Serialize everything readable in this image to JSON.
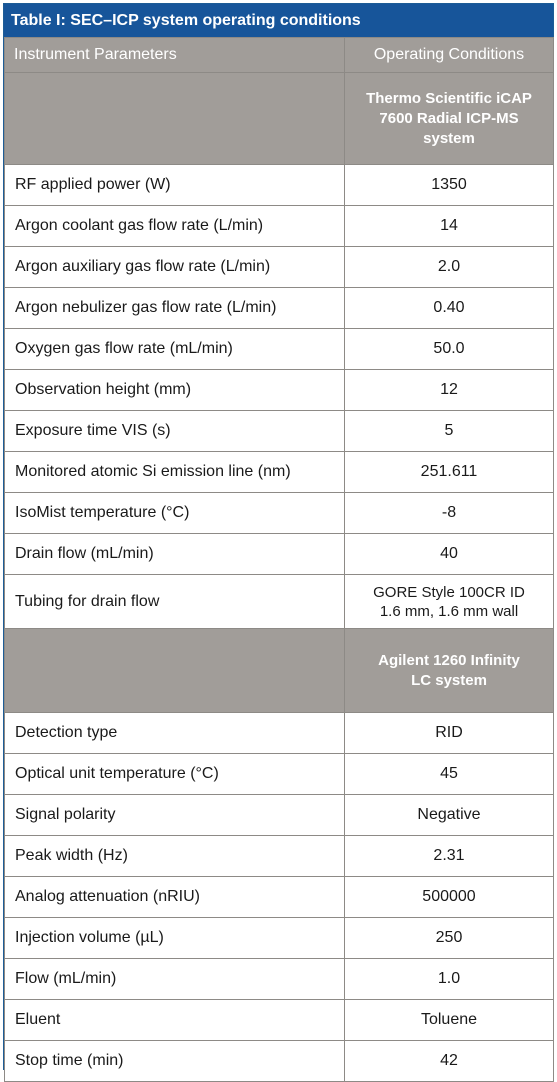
{
  "title": "Table I: SEC–ICP system operating conditions",
  "header": {
    "param_label": "Instrument Parameters",
    "cond_label": "Operating Conditions"
  },
  "sections": [
    {
      "system_line1": "Thermo Scientific iCAP",
      "system_line2": "7600 Radial ICP-MS",
      "system_line3": "system",
      "rows": [
        {
          "param": "RF applied power (W)",
          "value": "1350"
        },
        {
          "param": "Argon coolant gas flow rate (L/min)",
          "value": "14"
        },
        {
          "param": "Argon auxiliary gas flow rate (L/min)",
          "value": "2.0"
        },
        {
          "param": "Argon nebulizer gas flow rate (L/min)",
          "value": "0.40"
        },
        {
          "param": "Oxygen gas flow rate (mL/min)",
          "value": "50.0"
        },
        {
          "param": "Observation height (mm)",
          "value": "12"
        },
        {
          "param": "Exposure time VIS (s)",
          "value": "5"
        },
        {
          "param": "Monitored atomic Si emission line (nm)",
          "value": "251.611"
        },
        {
          "param": "IsoMist temperature (°C)",
          "value": "-8"
        },
        {
          "param": "Drain flow (mL/min)",
          "value": "40"
        },
        {
          "param": "Tubing for drain flow",
          "value_line1": "GORE Style 100CR ID",
          "value_line2": "1.6 mm, 1.6 mm wall"
        }
      ]
    },
    {
      "system_line1": "Agilent 1260 Infinity",
      "system_line2": "LC system",
      "rows": [
        {
          "param": "Detection type",
          "value": "RID"
        },
        {
          "param": "Optical unit temperature (°C)",
          "value": "45"
        },
        {
          "param": "Signal polarity",
          "value": "Negative"
        },
        {
          "param": "Peak width (Hz)",
          "value": "2.31"
        },
        {
          "param": "Analog attenuation (nRIU)",
          "value": "500000"
        },
        {
          "param": "Injection volume (µL)",
          "value": "250"
        },
        {
          "param": "Flow (mL/min)",
          "value": "1.0"
        },
        {
          "param": "Eluent",
          "value": "Toluene"
        },
        {
          "param": "Stop time (min)",
          "value": "42"
        }
      ]
    }
  ],
  "colors": {
    "title_bg": "#17559a",
    "header_bg": "#a19d99",
    "border": "#8d8a86"
  }
}
